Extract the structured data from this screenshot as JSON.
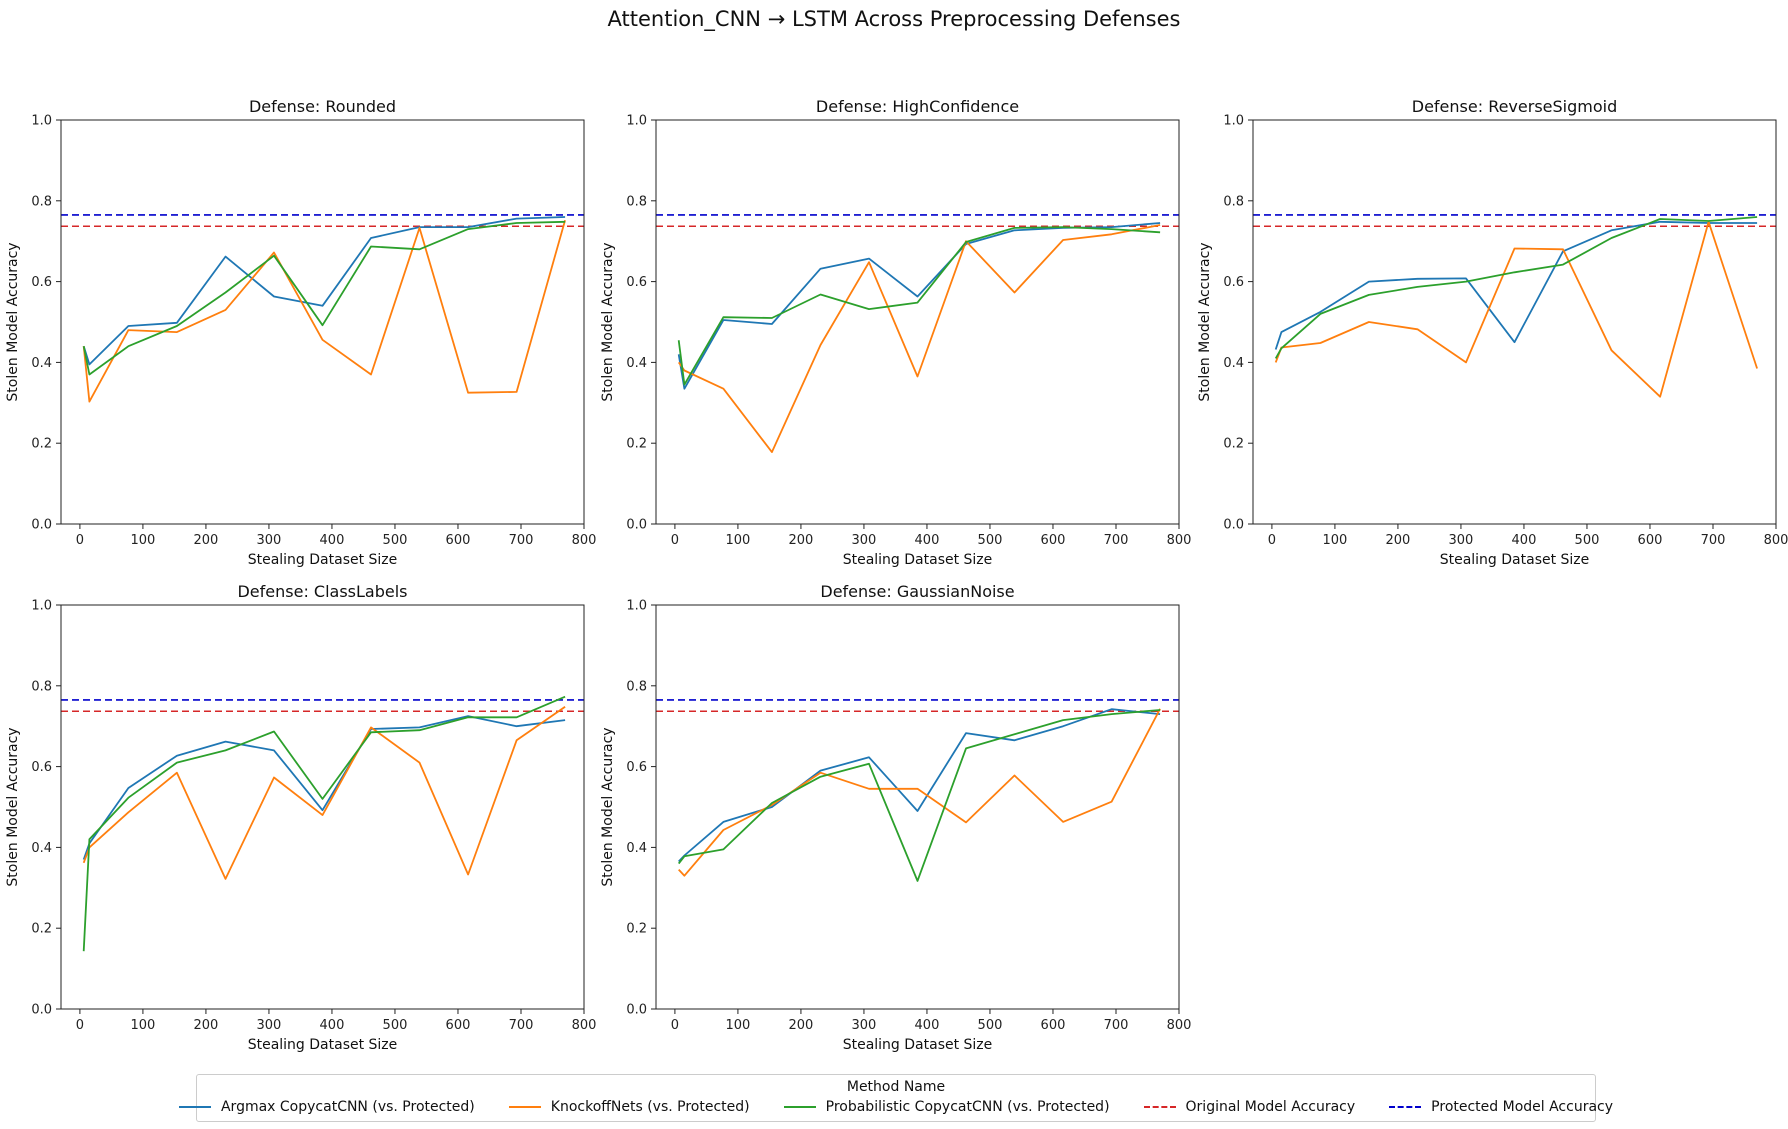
{
  "figure_title": "Attention_CNN → LSTM Across Preprocessing Defenses",
  "legend": {
    "title": "Method Name",
    "items": [
      {
        "label": "Argmax CopycatCNN (vs. Protected)",
        "color": "#1f77b4",
        "style": "solid"
      },
      {
        "label": "KnockoffNets (vs. Protected)",
        "color": "#ff7f0e",
        "style": "solid"
      },
      {
        "label": "Probabilistic CopycatCNN (vs. Protected)",
        "color": "#2ca02c",
        "style": "solid"
      },
      {
        "label": "Original Model Accuracy",
        "color": "#d62728",
        "style": "dashed"
      },
      {
        "label": "Protected Model Accuracy",
        "color": "#0000cc",
        "style": "dashed"
      }
    ]
  },
  "chart_data": [
    {
      "type": "line",
      "title": "Defense: Rounded",
      "xlabel": "Stealing Dataset Size",
      "ylabel": "Stolen Model Accuracy",
      "xlim": [
        -30,
        800
      ],
      "ylim": [
        0,
        1.0
      ],
      "xticks": [
        0,
        100,
        200,
        300,
        400,
        500,
        600,
        700,
        800
      ],
      "yticks": [
        0.0,
        0.2,
        0.4,
        0.6,
        0.8,
        1.0
      ],
      "x": [
        6,
        15,
        77,
        154,
        231,
        308,
        385,
        462,
        539,
        616,
        693,
        770
      ],
      "series": [
        {
          "name": "Argmax CopycatCNN (vs. Protected)",
          "values": [
            0.44,
            0.395,
            0.49,
            0.498,
            0.662,
            0.563,
            0.54,
            0.708,
            0.735,
            0.735,
            0.756,
            0.76
          ]
        },
        {
          "name": "KnockoffNets (vs. Protected)",
          "values": [
            0.44,
            0.303,
            0.48,
            0.475,
            0.53,
            0.672,
            0.456,
            0.37,
            0.733,
            0.325,
            0.327,
            0.752
          ]
        },
        {
          "name": "Probabilistic CopycatCNN (vs. Protected)",
          "values": [
            0.44,
            0.37,
            0.44,
            0.49,
            0.573,
            0.664,
            0.492,
            0.687,
            0.68,
            0.73,
            0.745,
            0.748
          ]
        }
      ],
      "hlines": [
        {
          "name": "Original Model Accuracy",
          "value": 0.737
        },
        {
          "name": "Protected Model Accuracy",
          "value": 0.765
        }
      ]
    },
    {
      "type": "line",
      "title": "Defense: HighConfidence",
      "xlabel": "Stealing Dataset Size",
      "ylabel": "Stolen Model Accuracy",
      "xlim": [
        -30,
        800
      ],
      "ylim": [
        0,
        1.0
      ],
      "xticks": [
        0,
        100,
        200,
        300,
        400,
        500,
        600,
        700,
        800
      ],
      "yticks": [
        0.0,
        0.2,
        0.4,
        0.6,
        0.8,
        1.0
      ],
      "x": [
        6,
        15,
        77,
        154,
        231,
        308,
        385,
        462,
        539,
        616,
        693,
        770
      ],
      "series": [
        {
          "name": "Argmax CopycatCNN (vs. Protected)",
          "values": [
            0.42,
            0.335,
            0.505,
            0.495,
            0.632,
            0.657,
            0.563,
            0.693,
            0.727,
            0.733,
            0.735,
            0.745
          ]
        },
        {
          "name": "KnockoffNets (vs. Protected)",
          "values": [
            0.4,
            0.38,
            0.335,
            0.178,
            0.443,
            0.648,
            0.365,
            0.7,
            0.573,
            0.703,
            0.717,
            0.74
          ]
        },
        {
          "name": "Probabilistic CopycatCNN (vs. Protected)",
          "values": [
            0.455,
            0.345,
            0.512,
            0.51,
            0.568,
            0.532,
            0.548,
            0.698,
            0.733,
            0.735,
            0.73,
            0.722
          ]
        }
      ],
      "hlines": [
        {
          "name": "Original Model Accuracy",
          "value": 0.737
        },
        {
          "name": "Protected Model Accuracy",
          "value": 0.765
        }
      ]
    },
    {
      "type": "line",
      "title": "Defense: ReverseSigmoid",
      "xlabel": "Stealing Dataset Size",
      "ylabel": "Stolen Model Accuracy",
      "xlim": [
        -30,
        800
      ],
      "ylim": [
        0,
        1.0
      ],
      "xticks": [
        0,
        100,
        200,
        300,
        400,
        500,
        600,
        700,
        800
      ],
      "yticks": [
        0.0,
        0.2,
        0.4,
        0.6,
        0.8,
        1.0
      ],
      "x": [
        6,
        15,
        77,
        154,
        231,
        308,
        385,
        462,
        539,
        616,
        693,
        770
      ],
      "series": [
        {
          "name": "Argmax CopycatCNN (vs. Protected)",
          "values": [
            0.432,
            0.475,
            0.525,
            0.6,
            0.607,
            0.608,
            0.45,
            0.675,
            0.727,
            0.748,
            0.745,
            0.745
          ]
        },
        {
          "name": "KnockoffNets (vs. Protected)",
          "values": [
            0.4,
            0.437,
            0.448,
            0.5,
            0.482,
            0.4,
            0.682,
            0.68,
            0.43,
            0.315,
            0.748,
            0.385
          ]
        },
        {
          "name": "Probabilistic CopycatCNN (vs. Protected)",
          "values": [
            0.41,
            0.435,
            0.52,
            0.567,
            0.587,
            0.6,
            0.623,
            0.642,
            0.708,
            0.755,
            0.75,
            0.76
          ]
        }
      ],
      "hlines": [
        {
          "name": "Original Model Accuracy",
          "value": 0.737
        },
        {
          "name": "Protected Model Accuracy",
          "value": 0.765
        }
      ]
    },
    {
      "type": "line",
      "title": "Defense: ClassLabels",
      "xlabel": "Stealing Dataset Size",
      "ylabel": "Stolen Model Accuracy",
      "xlim": [
        -30,
        800
      ],
      "ylim": [
        0,
        1.0
      ],
      "xticks": [
        0,
        100,
        200,
        300,
        400,
        500,
        600,
        700,
        800
      ],
      "yticks": [
        0.0,
        0.2,
        0.4,
        0.6,
        0.8,
        1.0
      ],
      "x": [
        6,
        15,
        77,
        154,
        231,
        308,
        385,
        462,
        539,
        616,
        693,
        770
      ],
      "series": [
        {
          "name": "Argmax CopycatCNN (vs. Protected)",
          "values": [
            0.37,
            0.41,
            0.547,
            0.627,
            0.662,
            0.64,
            0.492,
            0.693,
            0.697,
            0.725,
            0.7,
            0.715
          ]
        },
        {
          "name": "KnockoffNets (vs. Protected)",
          "values": [
            0.362,
            0.4,
            0.487,
            0.585,
            0.322,
            0.573,
            0.48,
            0.697,
            0.61,
            0.333,
            0.665,
            0.748
          ]
        },
        {
          "name": "Probabilistic CopycatCNN (vs. Protected)",
          "values": [
            0.143,
            0.42,
            0.523,
            0.61,
            0.64,
            0.687,
            0.52,
            0.685,
            0.69,
            0.722,
            0.722,
            0.773
          ]
        }
      ],
      "hlines": [
        {
          "name": "Original Model Accuracy",
          "value": 0.737
        },
        {
          "name": "Protected Model Accuracy",
          "value": 0.765
        }
      ]
    },
    {
      "type": "line",
      "title": "Defense: GaussianNoise",
      "xlabel": "Stealing Dataset Size",
      "ylabel": "Stolen Model Accuracy",
      "xlim": [
        -30,
        800
      ],
      "ylim": [
        0,
        1.0
      ],
      "xticks": [
        0,
        100,
        200,
        300,
        400,
        500,
        600,
        700,
        800
      ],
      "yticks": [
        0.0,
        0.2,
        0.4,
        0.6,
        0.8,
        1.0
      ],
      "x": [
        6,
        15,
        77,
        154,
        231,
        308,
        385,
        462,
        539,
        616,
        693,
        770
      ],
      "series": [
        {
          "name": "Argmax CopycatCNN (vs. Protected)",
          "values": [
            0.365,
            0.38,
            0.463,
            0.5,
            0.59,
            0.623,
            0.49,
            0.683,
            0.665,
            0.7,
            0.742,
            0.73
          ]
        },
        {
          "name": "KnockoffNets (vs. Protected)",
          "values": [
            0.345,
            0.33,
            0.443,
            0.505,
            0.585,
            0.545,
            0.545,
            0.462,
            0.578,
            0.463,
            0.513,
            0.743
          ]
        },
        {
          "name": "Probabilistic CopycatCNN (vs. Protected)",
          "values": [
            0.36,
            0.378,
            0.395,
            0.51,
            0.575,
            0.607,
            0.317,
            0.645,
            0.68,
            0.715,
            0.73,
            0.74
          ]
        }
      ],
      "hlines": [
        {
          "name": "Original Model Accuracy",
          "value": 0.737
        },
        {
          "name": "Protected Model Accuracy",
          "value": 0.765
        }
      ]
    }
  ]
}
